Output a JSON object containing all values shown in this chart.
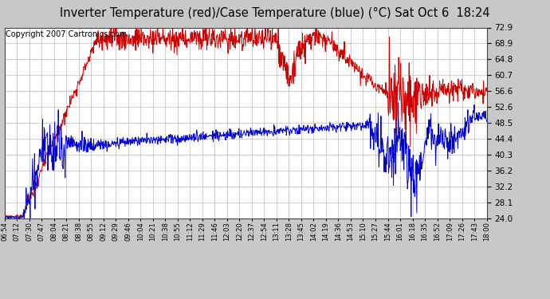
{
  "title": "Inverter Temperature (red)/Case Temperature (blue) (°C) Sat Oct 6  18:24",
  "copyright": "Copyright 2007 Cartronics.com",
  "y_min": 24.0,
  "y_max": 72.9,
  "y_ticks": [
    24.0,
    28.1,
    32.2,
    36.2,
    40.3,
    44.4,
    48.5,
    52.6,
    56.6,
    60.7,
    64.8,
    68.9,
    72.9
  ],
  "x_labels": [
    "06:54",
    "07:12",
    "07:30",
    "07:47",
    "08:04",
    "08:21",
    "08:38",
    "08:55",
    "09:12",
    "09:29",
    "09:46",
    "10:04",
    "10:21",
    "10:38",
    "10:55",
    "11:12",
    "11:29",
    "11:46",
    "12:03",
    "12:20",
    "12:37",
    "12:54",
    "13:11",
    "13:28",
    "13:45",
    "14:02",
    "14:19",
    "14:36",
    "14:53",
    "15:10",
    "15:27",
    "15:44",
    "16:01",
    "16:18",
    "16:35",
    "16:52",
    "17:09",
    "17:26",
    "17:43",
    "18:00"
  ],
  "bg_color": "#c8c8c8",
  "plot_bg_color": "#ffffff",
  "grid_color": "#aaaaaa",
  "red_color": "#cc0000",
  "blue_color": "#0000cc",
  "title_font_size": 10.5,
  "copyright_font_size": 7
}
